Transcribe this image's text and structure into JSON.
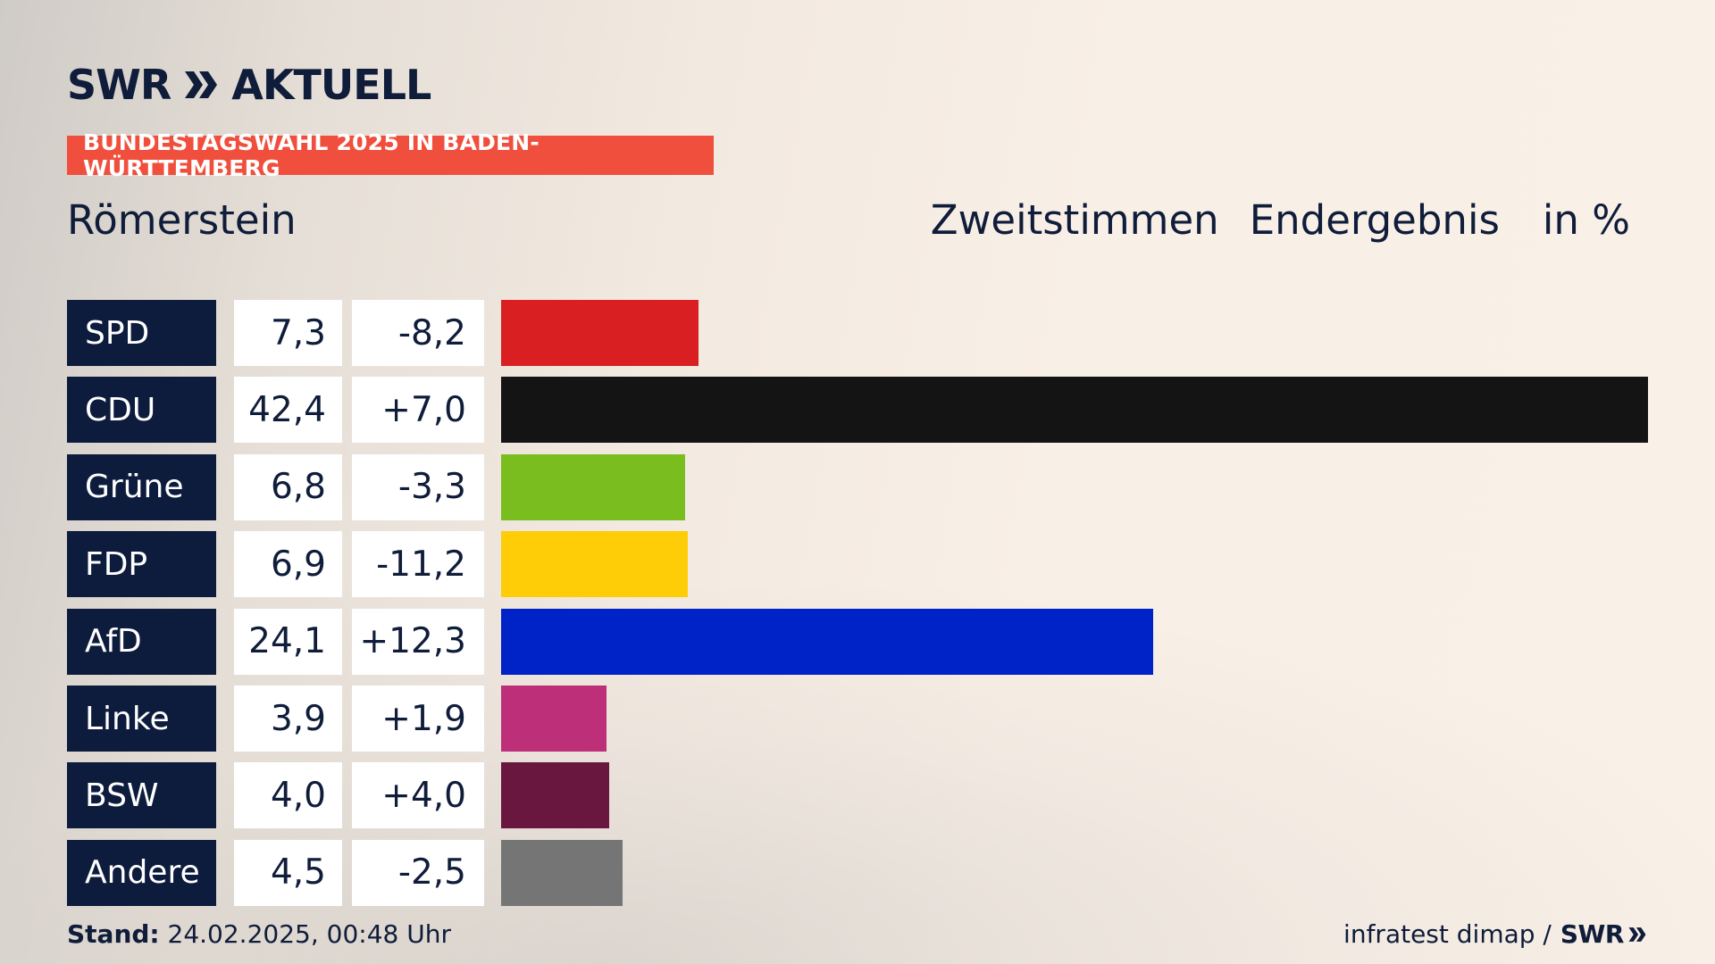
{
  "brand": {
    "logo_left": "SWR",
    "logo_right": "AKTUELL",
    "footer_logo": "SWR"
  },
  "banner": "BUNDESTAGSWAHL 2025 IN BADEN-WÜRTTEMBERG",
  "location": "Römerstein",
  "header": {
    "vote_type": "Zweitstimmen",
    "status": "Endergebnis",
    "unit": "in %"
  },
  "footer": {
    "stand_label": "Stand:",
    "stand_value": " 24.02.2025, 00:48 Uhr",
    "source": "infratest dimap /"
  },
  "colors": {
    "navy": "#0d1b3d",
    "banner": "#f04f3d"
  },
  "chart_data": {
    "type": "bar",
    "categories": [
      "SPD",
      "CDU",
      "Grüne",
      "FDP",
      "AfD",
      "Linke",
      "BSW",
      "Andere"
    ],
    "values": [
      7.3,
      42.4,
      6.8,
      6.9,
      24.1,
      3.9,
      4.0,
      4.5
    ],
    "values_text": [
      "7,3",
      "42,4",
      "6,8",
      "6,9",
      "24,1",
      "3,9",
      "4,0",
      "4,5"
    ],
    "changes_text": [
      "-8,2",
      "+7,0",
      "-3,3",
      "-11,2",
      "+12,3",
      "+1,9",
      "+4,0",
      "-2,5"
    ],
    "colors": [
      "#d91f21",
      "#141414",
      "#79bd1f",
      "#ffcd07",
      "#0023c8",
      "#be2f7a",
      "#6a1740",
      "#757575"
    ],
    "xlim": [
      0,
      42.4
    ]
  }
}
